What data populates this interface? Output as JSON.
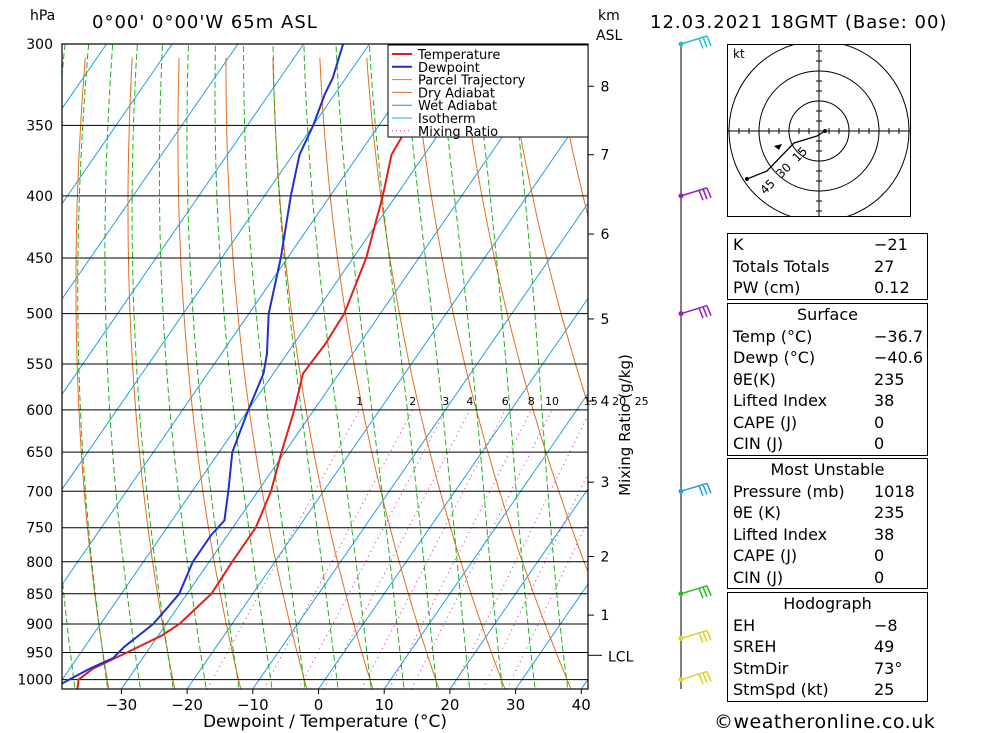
{
  "header": {
    "location": "0°00' 0°00'W 65m ASL",
    "datetime": "12.03.2021 18GMT (Base: 00)",
    "p_unit": "hPa",
    "km_unit": "km",
    "asl_unit": "ASL"
  },
  "chart_data": {
    "type": "line",
    "xlabel": "Dewpoint / Temperature (°C)",
    "ylabel_right": "Mixing Ratio (g/kg)",
    "x_ticks": [
      -30,
      -20,
      -10,
      0,
      10,
      20,
      30,
      40
    ],
    "xlim": [
      -40,
      40
    ],
    "p_levels": [
      300,
      350,
      400,
      450,
      500,
      550,
      600,
      650,
      700,
      750,
      800,
      850,
      900,
      950,
      1000
    ],
    "ylim_hpa": [
      1018,
      300
    ],
    "km_ticks": [
      {
        "label": "8",
        "p": 325
      },
      {
        "label": "7",
        "p": 370
      },
      {
        "label": "6",
        "p": 430
      },
      {
        "label": "5",
        "p": 505
      },
      {
        "label": "4",
        "p": 590
      },
      {
        "label": "3",
        "p": 688
      },
      {
        "label": "2",
        "p": 792
      },
      {
        "label": "1",
        "p": 885
      }
    ],
    "lcl_label": "LCL",
    "lcl_p": 955,
    "mixing_ratio_labels": [
      "1",
      "2",
      "3",
      "4",
      "6",
      "8",
      "10",
      "15",
      "20",
      "25"
    ],
    "mixing_ratio_values": [
      1,
      2,
      3,
      4,
      6,
      8,
      10,
      15,
      20,
      25
    ],
    "legend": [
      "Temperature",
      "Dewpoint",
      "Parcel Trajectory",
      "Dry Adiabat",
      "Wet Adiabat",
      "Isotherm",
      "Mixing Ratio"
    ],
    "colors": {
      "temperature": "#e02020",
      "dewpoint": "#2030d0",
      "parcel": "#909090",
      "dry_adiabat": "#e07020",
      "wet_adiabat": "#20b020",
      "isotherm": "#20a0e0",
      "mixing_ratio": "#d020a0"
    },
    "series": [
      {
        "name": "Temperature",
        "points": [
          [
            1018,
            -36.7
          ],
          [
            1000,
            -37.5
          ],
          [
            980,
            -36.5
          ],
          [
            950,
            -33
          ],
          [
            920,
            -29.5
          ],
          [
            900,
            -28
          ],
          [
            870,
            -27
          ],
          [
            850,
            -26.3
          ],
          [
            800,
            -26.5
          ],
          [
            750,
            -26.5
          ],
          [
            700,
            -28
          ],
          [
            650,
            -30.5
          ],
          [
            600,
            -33
          ],
          [
            560,
            -35.5
          ],
          [
            530,
            -35.2
          ],
          [
            500,
            -35.5
          ],
          [
            450,
            -38
          ],
          [
            400,
            -42
          ],
          [
            370,
            -45
          ],
          [
            350,
            -45.5
          ],
          [
            340,
            -47
          ],
          [
            325,
            -50
          ],
          [
            318,
            -52
          ],
          [
            310,
            -52
          ],
          [
            300,
            -53
          ]
        ]
      },
      {
        "name": "Dewpoint",
        "points": [
          [
            1018,
            -40.6
          ],
          [
            980,
            -37
          ],
          [
            960,
            -34.5
          ],
          [
            940,
            -34
          ],
          [
            920,
            -33
          ],
          [
            900,
            -32
          ],
          [
            870,
            -31.5
          ],
          [
            850,
            -31.2
          ],
          [
            800,
            -32.5
          ],
          [
            760,
            -32.5
          ],
          [
            740,
            -32
          ],
          [
            700,
            -34.5
          ],
          [
            650,
            -38
          ],
          [
            600,
            -40
          ],
          [
            560,
            -41.5
          ],
          [
            540,
            -43
          ],
          [
            500,
            -47
          ],
          [
            450,
            -51
          ],
          [
            400,
            -56
          ],
          [
            370,
            -59
          ],
          [
            350,
            -60
          ],
          [
            330,
            -61.5
          ],
          [
            320,
            -62
          ],
          [
            300,
            -64
          ]
        ]
      }
    ],
    "wind_barbs": [
      {
        "p": 300,
        "color": "#20c0d0"
      },
      {
        "p": 400,
        "color": "#9020c0"
      },
      {
        "p": 500,
        "color": "#9020c0"
      },
      {
        "p": 700,
        "color": "#20a0e0"
      },
      {
        "p": 850,
        "color": "#20c020"
      },
      {
        "p": 925,
        "color": "#e0d020"
      },
      {
        "p": 1000,
        "color": "#e0d020"
      }
    ]
  },
  "hodograph": {
    "unit": "kt",
    "ring_labels": [
      "15",
      "30",
      "45"
    ]
  },
  "indices": [
    {
      "label": "K",
      "value": "-21"
    },
    {
      "label": "Totals Totals",
      "value": "27"
    },
    {
      "label": "PW (cm)",
      "value": "0.12"
    }
  ],
  "surface": {
    "title": "Surface",
    "rows": [
      {
        "label": "Temp (°C)",
        "value": "-36.7"
      },
      {
        "label": "Dewp (°C)",
        "value": "-40.6"
      },
      {
        "label": "θE(K)",
        "value": "235"
      },
      {
        "label": "Lifted Index",
        "value": "38"
      },
      {
        "label": "CAPE (J)",
        "value": "0"
      },
      {
        "label": "CIN (J)",
        "value": "0"
      }
    ]
  },
  "most_unstable": {
    "title": "Most Unstable",
    "rows": [
      {
        "label": "Pressure (mb)",
        "value": "1018"
      },
      {
        "label": "θE (K)",
        "value": "235"
      },
      {
        "label": "Lifted Index",
        "value": "38"
      },
      {
        "label": "CAPE (J)",
        "value": "0"
      },
      {
        "label": "CIN (J)",
        "value": "0"
      }
    ]
  },
  "hodograph_table": {
    "title": "Hodograph",
    "rows": [
      {
        "label": "EH",
        "value": "-8"
      },
      {
        "label": "SREH",
        "value": "49"
      },
      {
        "label": "StmDir",
        "value": "73°"
      },
      {
        "label": "StmSpd (kt)",
        "value": "25"
      }
    ]
  },
  "footer": "©weatheronline.co.uk"
}
